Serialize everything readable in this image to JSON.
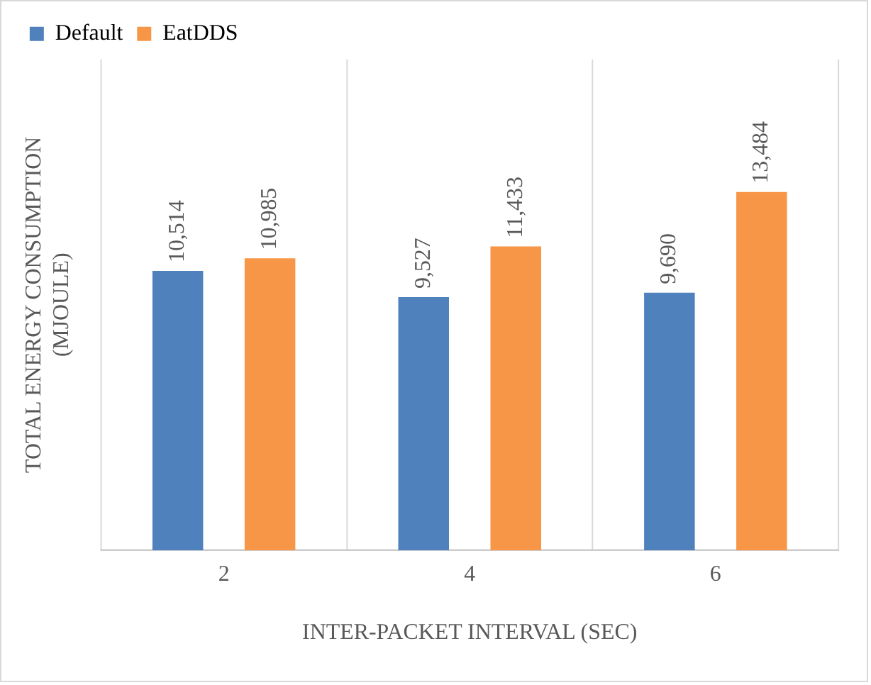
{
  "chart_data": {
    "type": "bar",
    "xlabel": "INTER-PACKET INTERVAL (SEC)",
    "ylabel": "TOTAL ENERGY CONSUMPTION\n(MJOULE)",
    "categories": [
      "2",
      "4",
      "6"
    ],
    "series": [
      {
        "name": "Default",
        "color": "#4f81bd",
        "values": [
          10514,
          9527,
          9690
        ],
        "value_labels": [
          "10,514",
          "9,527",
          "9,690"
        ]
      },
      {
        "name": "EatDDS",
        "color": "#f79646",
        "values": [
          10985,
          11433,
          13484
        ],
        "value_labels": [
          "10,985",
          "11,433",
          "13,484"
        ]
      }
    ],
    "grid": "x",
    "legend": "top left"
  }
}
